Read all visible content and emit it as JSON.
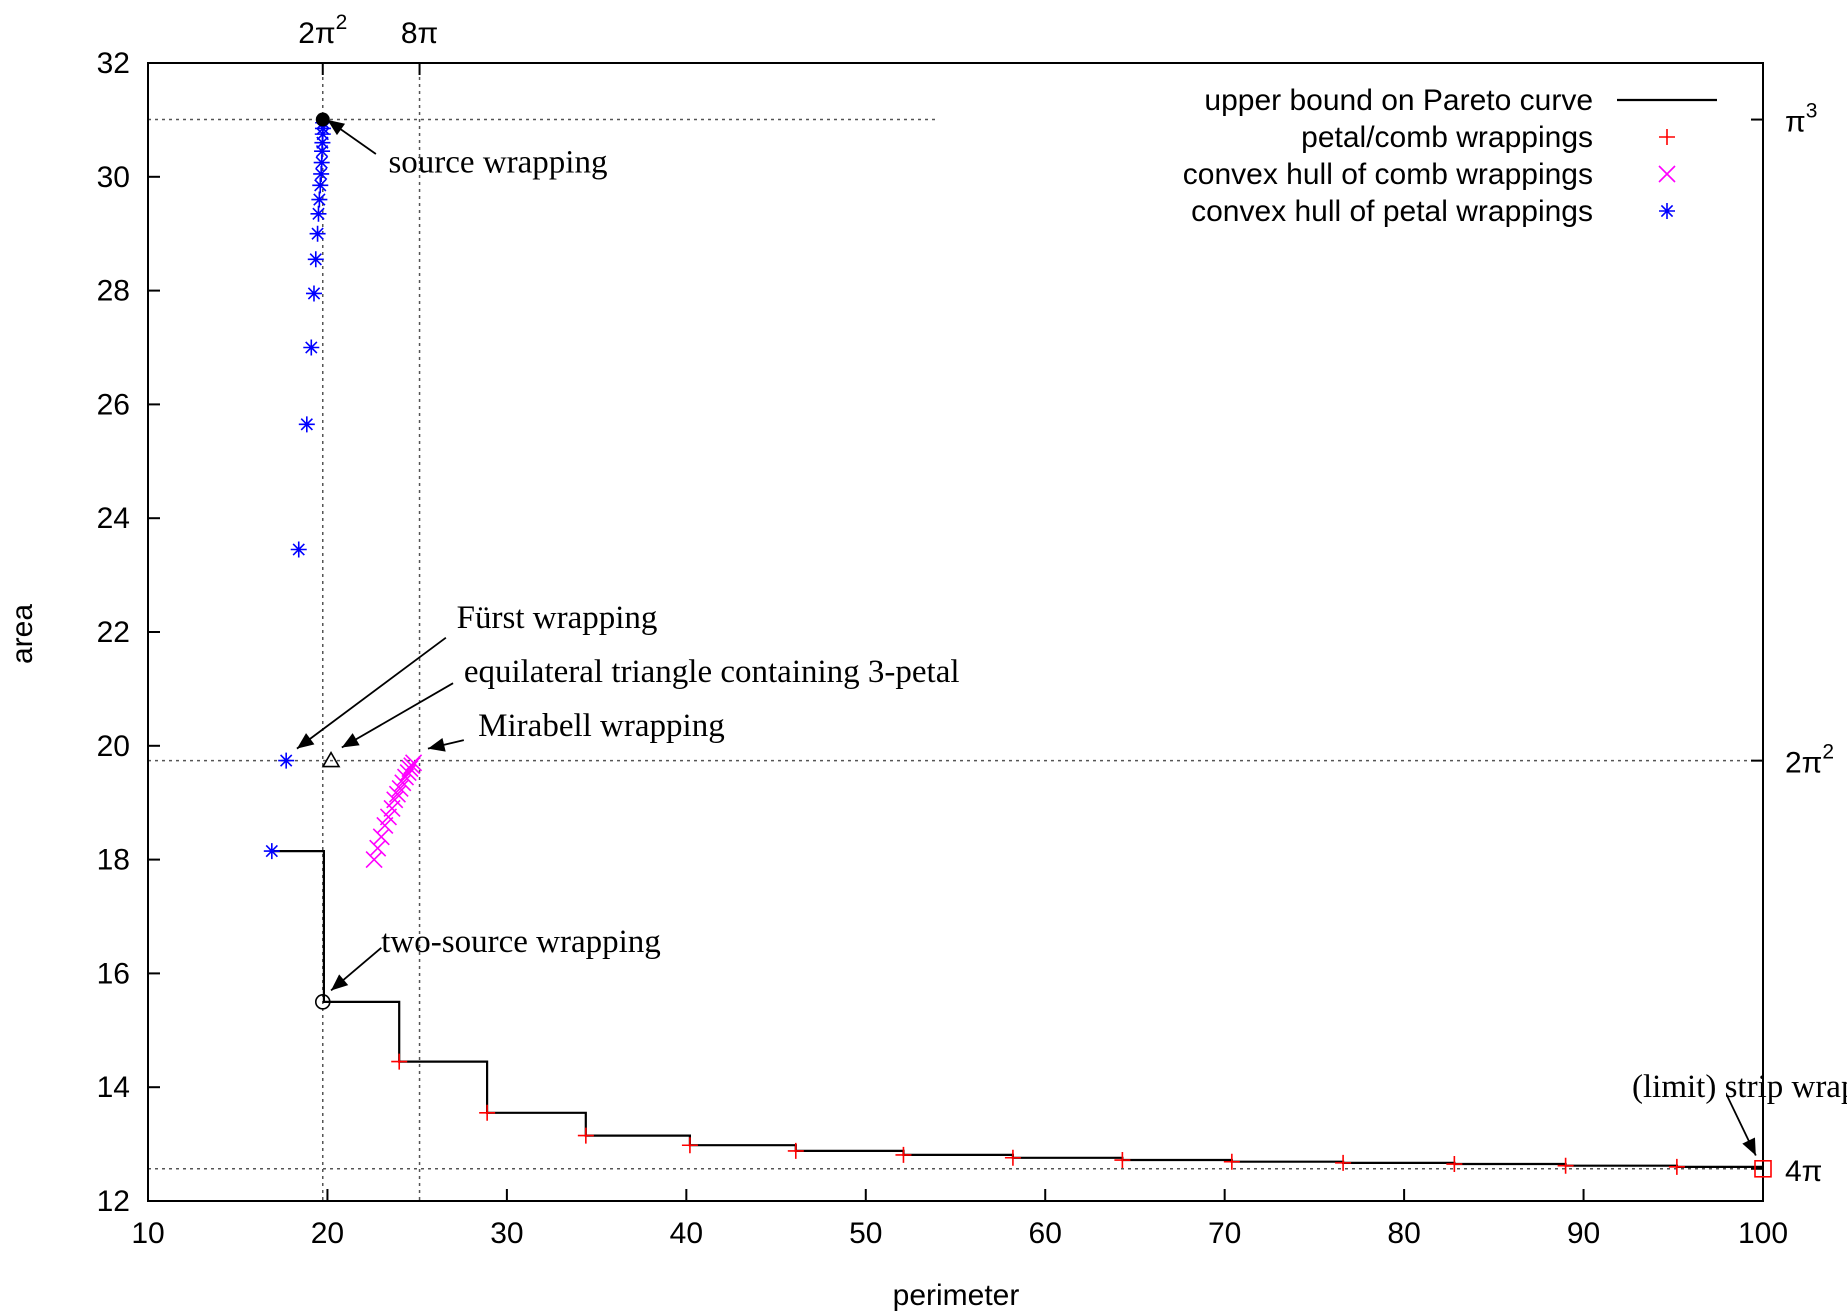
{
  "chart_data": {
    "type": "scatter",
    "title": "",
    "xlabel": "perimeter",
    "ylabel": "area",
    "xlim": [
      10,
      100
    ],
    "ylim": [
      12,
      32
    ],
    "x_ticks": [
      10,
      20,
      30,
      40,
      50,
      60,
      70,
      80,
      90,
      100
    ],
    "y_ticks": [
      12,
      14,
      16,
      18,
      20,
      22,
      24,
      26,
      28,
      30,
      32
    ],
    "grid": false,
    "legend_position": "top-right",
    "top_axis_ticks": [
      {
        "label": "2π",
        "sup": "2",
        "value": 19.739
      },
      {
        "label": "8π",
        "sup": "",
        "value": 25.133
      }
    ],
    "right_axis_ticks": [
      {
        "label": "π",
        "sup": "3",
        "value": 31.006
      },
      {
        "label": "2π",
        "sup": "2",
        "value": 19.739
      },
      {
        "label": "4π",
        "sup": "",
        "value": 12.566
      }
    ],
    "reference_lines": {
      "vertical": [
        19.739,
        25.133
      ],
      "horizontal": [
        {
          "y": 31.006,
          "x_end": 54
        },
        {
          "y": 19.739,
          "x_end": 100
        },
        {
          "y": 12.566,
          "x_end": 100
        }
      ]
    },
    "series": [
      {
        "name": "upper bound on Pareto curve",
        "kind": "step",
        "color": "#000000",
        "points": [
          [
            16.9,
            18.15
          ],
          [
            19.8,
            18.15
          ],
          [
            19.8,
            15.5
          ],
          [
            24.0,
            15.5
          ],
          [
            24.0,
            14.45
          ],
          [
            28.9,
            14.45
          ],
          [
            28.9,
            13.55
          ],
          [
            34.4,
            13.55
          ],
          [
            34.4,
            13.15
          ],
          [
            40.2,
            13.15
          ],
          [
            40.2,
            12.98
          ],
          [
            46.1,
            12.98
          ],
          [
            46.1,
            12.88
          ],
          [
            52.1,
            12.88
          ],
          [
            52.1,
            12.81
          ],
          [
            58.2,
            12.81
          ],
          [
            58.2,
            12.76
          ],
          [
            64.3,
            12.76
          ],
          [
            64.3,
            12.72
          ],
          [
            70.4,
            12.72
          ],
          [
            70.4,
            12.69
          ],
          [
            76.6,
            12.69
          ],
          [
            76.6,
            12.67
          ],
          [
            82.8,
            12.67
          ],
          [
            82.8,
            12.65
          ],
          [
            89.0,
            12.65
          ],
          [
            89.0,
            12.62
          ],
          [
            95.2,
            12.62
          ],
          [
            95.2,
            12.6
          ],
          [
            100,
            12.6
          ]
        ]
      },
      {
        "name": "petal/comb wrappings",
        "marker": "plus",
        "color": "#ff0000",
        "points": [
          [
            24.0,
            14.45
          ],
          [
            28.9,
            13.55
          ],
          [
            34.4,
            13.15
          ],
          [
            40.2,
            12.98
          ],
          [
            46.1,
            12.88
          ],
          [
            52.1,
            12.81
          ],
          [
            58.2,
            12.76
          ],
          [
            64.3,
            12.72
          ],
          [
            70.4,
            12.69
          ],
          [
            76.6,
            12.67
          ],
          [
            82.8,
            12.65
          ],
          [
            89.0,
            12.62
          ],
          [
            95.2,
            12.6
          ]
        ]
      },
      {
        "name": "convex hull of comb wrappings",
        "marker": "x",
        "color": "#ff00ff",
        "points": [
          [
            22.6,
            18.0
          ],
          [
            22.8,
            18.2
          ],
          [
            23.0,
            18.4
          ],
          [
            23.2,
            18.6
          ],
          [
            23.4,
            18.75
          ],
          [
            23.6,
            18.9
          ],
          [
            23.75,
            19.05
          ],
          [
            23.9,
            19.15
          ],
          [
            24.05,
            19.25
          ],
          [
            24.2,
            19.35
          ],
          [
            24.35,
            19.45
          ],
          [
            24.5,
            19.53
          ],
          [
            24.6,
            19.6
          ],
          [
            24.7,
            19.65
          ],
          [
            24.8,
            19.7
          ]
        ]
      },
      {
        "name": "convex hull of petal wrappings",
        "marker": "asterisk",
        "color": "#0000ff",
        "points": [
          [
            16.9,
            18.15
          ],
          [
            17.7,
            19.74
          ],
          [
            18.4,
            23.45
          ],
          [
            18.85,
            25.65
          ],
          [
            19.1,
            27.0
          ],
          [
            19.25,
            27.95
          ],
          [
            19.35,
            28.55
          ],
          [
            19.45,
            29.0
          ],
          [
            19.5,
            29.35
          ],
          [
            19.55,
            29.6
          ],
          [
            19.6,
            29.85
          ],
          [
            19.65,
            30.05
          ],
          [
            19.68,
            30.25
          ],
          [
            19.7,
            30.45
          ],
          [
            19.72,
            30.6
          ],
          [
            19.74,
            30.75
          ],
          [
            19.75,
            30.85
          ],
          [
            19.76,
            30.95
          ]
        ]
      }
    ],
    "special_markers": [
      {
        "shape": "filled-circle",
        "x": 19.74,
        "y": 31.006,
        "color": "#000000"
      },
      {
        "shape": "triangle",
        "x": 20.2,
        "y": 19.74,
        "color": "#000000"
      },
      {
        "shape": "circle",
        "x": 19.74,
        "y": 15.5,
        "color": "#000000"
      },
      {
        "shape": "square",
        "x": 100,
        "y": 12.566,
        "color": "#ff0000"
      }
    ],
    "annotations": [
      {
        "text": "source wrapping",
        "text_x": 23.4,
        "text_y": 30.25,
        "arrow_from": [
          22.7,
          30.4
        ],
        "arrow_to": [
          20.0,
          31.0
        ]
      },
      {
        "text": "Fürst wrapping",
        "text_x": 27.2,
        "text_y": 22.25,
        "arrow_from": [
          26.6,
          21.9
        ],
        "arrow_to": [
          18.3,
          19.95
        ]
      },
      {
        "text": "equilateral triangle containing 3-petal",
        "text_x": 27.6,
        "text_y": 21.3,
        "arrow_from": [
          27.0,
          21.1
        ],
        "arrow_to": [
          20.8,
          19.97
        ]
      },
      {
        "text": "Mirabell wrapping",
        "text_x": 28.4,
        "text_y": 20.35,
        "arrow_from": [
          27.6,
          20.1
        ],
        "arrow_to": [
          25.6,
          19.95
        ]
      },
      {
        "text": "two-source wrapping",
        "text_x": 23.0,
        "text_y": 16.55,
        "arrow_from": [
          23.0,
          16.45
        ],
        "arrow_to": [
          20.2,
          15.7
        ]
      },
      {
        "text": "(limit) strip wrapping",
        "text_x": 92.7,
        "text_y": 14.0,
        "arrow_from": [
          98.0,
          13.85
        ],
        "arrow_to": [
          99.6,
          12.8
        ]
      }
    ]
  }
}
